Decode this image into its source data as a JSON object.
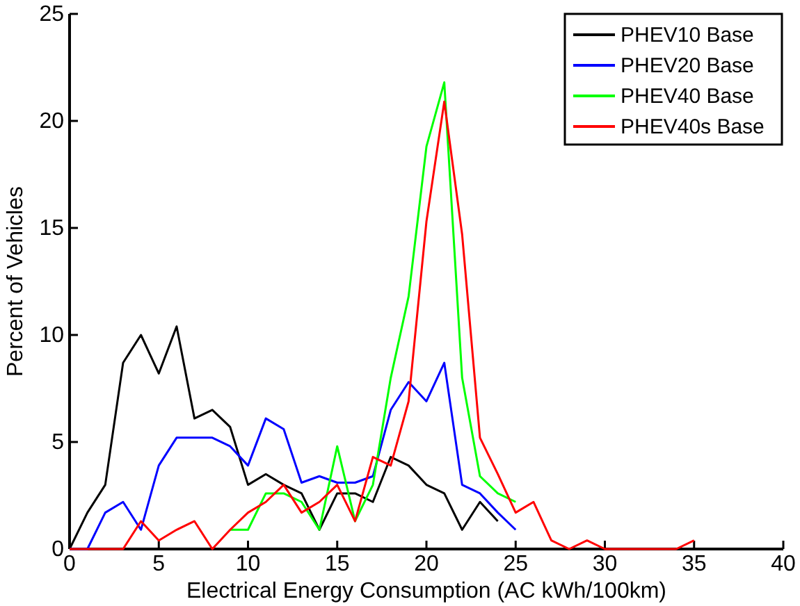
{
  "chart_data": {
    "type": "line",
    "xlabel": "Electrical Energy Consumption (AC kWh/100km)",
    "ylabel": "Percent of Vehicles",
    "xlim": [
      0,
      40
    ],
    "xticks": [
      0,
      5,
      10,
      15,
      20,
      25,
      30,
      35,
      40
    ],
    "ylim": [
      0,
      25
    ],
    "yticks": [
      0,
      5,
      10,
      15,
      20,
      25
    ],
    "legend": "top right",
    "grid": false,
    "series": [
      {
        "name": "PHEV10 Base",
        "color": "#000000",
        "x": [
          0,
          1,
          2,
          3,
          4,
          5,
          6,
          7,
          8,
          9,
          10,
          11,
          12,
          13,
          14,
          15,
          16,
          17,
          18,
          19,
          20,
          21,
          22,
          23,
          24
        ],
        "values": [
          0,
          1.7,
          3.0,
          8.7,
          10.0,
          8.2,
          10.4,
          6.1,
          6.5,
          5.7,
          3.0,
          3.5,
          3.0,
          2.6,
          0.9,
          2.6,
          2.6,
          2.2,
          4.3,
          3.9,
          3.0,
          2.6,
          0.9,
          2.2,
          1.3
        ]
      },
      {
        "name": "PHEV20 Base",
        "color": "#0000ff",
        "x": [
          0,
          1,
          2,
          3,
          4,
          5,
          6,
          7,
          8,
          9,
          10,
          11,
          12,
          13,
          14,
          15,
          16,
          17,
          18,
          19,
          20,
          21,
          22,
          23,
          24,
          25
        ],
        "values": [
          0,
          0,
          1.7,
          2.2,
          0.9,
          3.9,
          5.2,
          5.2,
          5.2,
          4.8,
          3.9,
          6.1,
          5.6,
          3.1,
          3.4,
          3.1,
          3.1,
          3.4,
          6.5,
          7.8,
          6.9,
          8.7,
          3.0,
          2.6,
          1.7,
          0.9
        ]
      },
      {
        "name": "PHEV40 Base",
        "color": "#00ff00",
        "x": [
          9,
          10,
          11,
          12,
          13,
          14,
          15,
          16,
          17,
          18,
          19,
          20,
          21,
          22,
          23,
          24,
          25
        ],
        "values": [
          0.9,
          0.9,
          2.6,
          2.6,
          2.2,
          0.9,
          4.8,
          1.3,
          3.0,
          8.0,
          11.8,
          18.8,
          21.8,
          8.0,
          3.4,
          2.6,
          2.2
        ]
      },
      {
        "name": "PHEV40s Base",
        "color": "#ff0000",
        "x": [
          0,
          1,
          2,
          3,
          4,
          5,
          6,
          7,
          8,
          9,
          10,
          11,
          12,
          13,
          14,
          15,
          16,
          17,
          18,
          19,
          20,
          21,
          22,
          23,
          24,
          25,
          26,
          27,
          28,
          29,
          30,
          31,
          32,
          33,
          34,
          35
        ],
        "values": [
          0,
          0,
          0,
          0,
          1.3,
          0.4,
          0.9,
          1.3,
          0,
          0.9,
          1.7,
          2.2,
          3.0,
          1.7,
          2.2,
          3.0,
          1.3,
          4.3,
          3.9,
          6.9,
          15.3,
          20.9,
          14.7,
          5.2,
          3.5,
          1.7,
          2.2,
          0.4,
          0,
          0.4,
          0,
          0,
          0,
          0,
          0,
          0.4
        ]
      }
    ]
  }
}
